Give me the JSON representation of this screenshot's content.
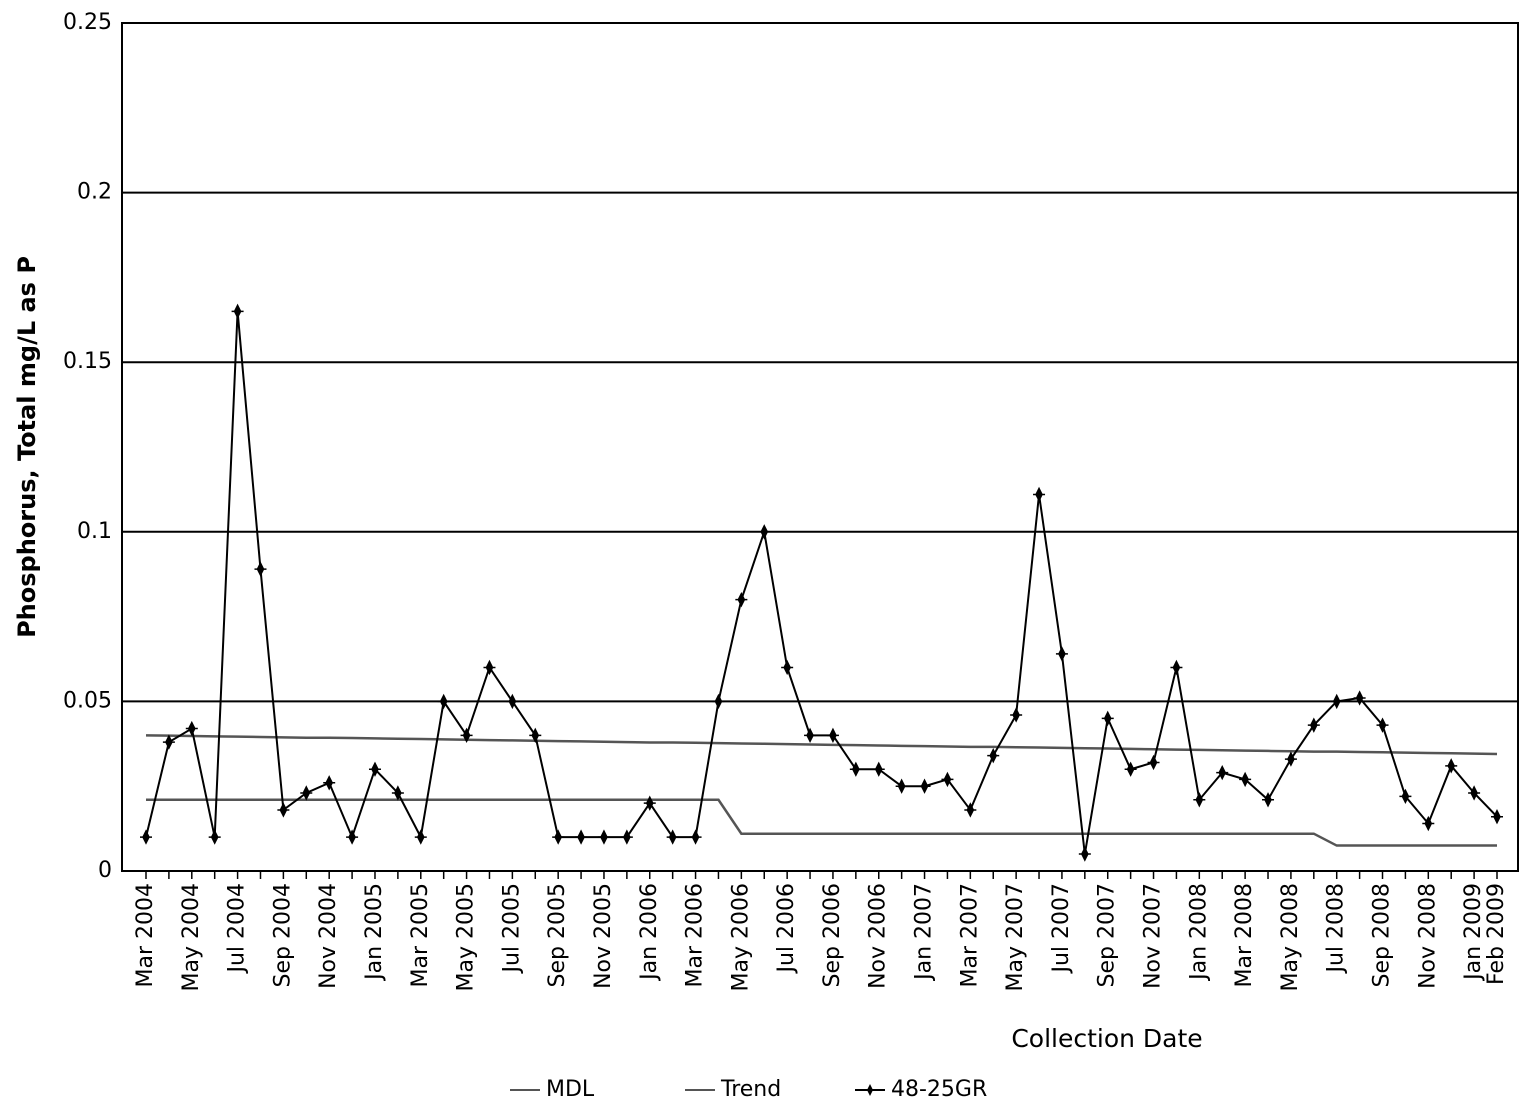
{
  "chart_data": {
    "type": "line",
    "y_label": "Phosphorus, Total   mg/L as P",
    "x_label": "Collection Date",
    "categories": [
      "Mar 2004",
      null,
      "May 2004",
      null,
      "Jul 2004",
      null,
      "Sep 2004",
      null,
      "Nov 2004",
      null,
      "Jan 2005",
      null,
      "Mar 2005",
      null,
      "May 2005",
      null,
      "Jul 2005",
      null,
      "Sep 2005",
      null,
      "Nov 2005",
      null,
      "Jan 2006",
      null,
      "Mar 2006",
      null,
      "May 2006",
      null,
      "Jul 2006",
      null,
      "Sep 2006",
      null,
      "Nov 2006",
      null,
      "Jan 2007",
      null,
      "Mar 2007",
      null,
      "May 2007",
      null,
      "Jul 2007",
      null,
      "Sep 2007",
      null,
      "Nov 2007",
      null,
      "Jan 2008",
      null,
      "Mar 2008",
      null,
      "May 2008",
      null,
      "Jul 2008",
      null,
      "Sep 2008",
      null,
      "Nov 2008",
      null,
      "Jan 2009",
      "Feb 2009"
    ],
    "ylim": [
      0,
      0.25
    ],
    "yticks": [
      0,
      0.05,
      0.1,
      0.15,
      0.2,
      0.25
    ],
    "grid": true,
    "series": [
      {
        "name": "MDL",
        "color": "#555555",
        "marker": false,
        "values": [
          0.021,
          0.021,
          0.021,
          0.021,
          0.021,
          0.021,
          0.021,
          0.021,
          0.021,
          0.021,
          0.021,
          0.021,
          0.021,
          0.021,
          0.021,
          0.021,
          0.021,
          0.021,
          0.021,
          0.021,
          0.021,
          0.021,
          0.021,
          0.021,
          0.021,
          0.021,
          0.011,
          0.011,
          0.011,
          0.011,
          0.011,
          0.011,
          0.011,
          0.011,
          0.011,
          0.011,
          0.011,
          0.011,
          0.011,
          0.011,
          0.011,
          0.011,
          0.011,
          0.011,
          0.011,
          0.011,
          0.011,
          0.011,
          0.011,
          0.011,
          0.011,
          0.011,
          0.0075,
          0.0075,
          0.0075,
          0.0075,
          0.0075,
          0.0075,
          0.0075,
          0.0075
        ]
      },
      {
        "name": "Trend",
        "color": "#555555",
        "marker": false,
        "values": [
          0.04,
          0.0399,
          0.0398,
          0.0397,
          0.0396,
          0.0395,
          0.0394,
          0.0393,
          0.0393,
          0.0392,
          0.0391,
          0.039,
          0.0389,
          0.0388,
          0.0387,
          0.0386,
          0.0385,
          0.0384,
          0.0383,
          0.0382,
          0.0381,
          0.038,
          0.0379,
          0.0379,
          0.0378,
          0.0377,
          0.0376,
          0.0375,
          0.0374,
          0.0373,
          0.0372,
          0.0371,
          0.037,
          0.0369,
          0.0368,
          0.0367,
          0.0366,
          0.0366,
          0.0365,
          0.0364,
          0.0363,
          0.0362,
          0.0361,
          0.036,
          0.0359,
          0.0358,
          0.0357,
          0.0356,
          0.0355,
          0.0354,
          0.0353,
          0.0352,
          0.0352,
          0.0351,
          0.035,
          0.0349,
          0.0348,
          0.0347,
          0.0346,
          0.0345
        ]
      },
      {
        "name": "48-25GR",
        "color": "#000000",
        "marker": true,
        "values": [
          0.01,
          0.038,
          0.042,
          0.01,
          0.165,
          0.089,
          0.018,
          0.023,
          0.026,
          0.01,
          0.03,
          0.023,
          0.01,
          0.05,
          0.04,
          0.06,
          0.05,
          0.04,
          0.01,
          0.01,
          0.01,
          0.01,
          0.02,
          0.01,
          0.01,
          0.05,
          0.08,
          0.1,
          0.06,
          0.04,
          0.04,
          0.03,
          0.03,
          0.025,
          0.025,
          0.027,
          0.018,
          0.034,
          0.046,
          0.111,
          0.064,
          0.005,
          0.045,
          0.03,
          0.032,
          0.06,
          0.021,
          0.029,
          0.027,
          0.021,
          0.033,
          0.043,
          0.05,
          0.051,
          0.043,
          0.022,
          0.014,
          0.031,
          0.023,
          0.016
        ]
      }
    ]
  }
}
